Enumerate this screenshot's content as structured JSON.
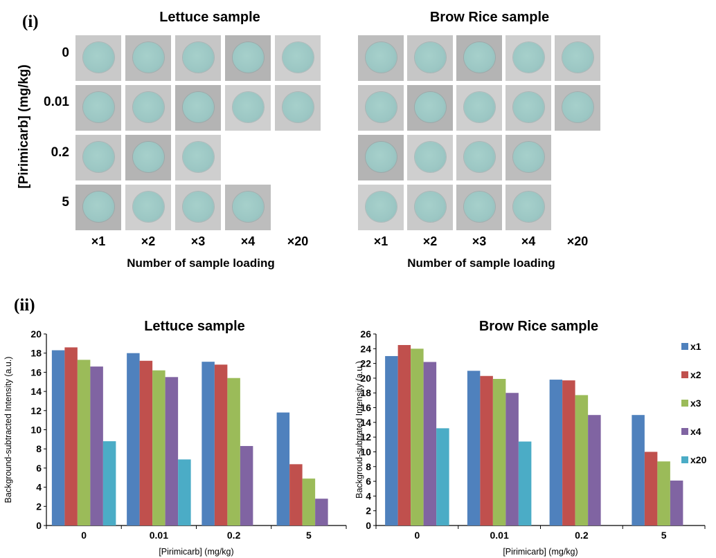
{
  "panel_i": {
    "label": "(i)",
    "y_label": "[Pirimicarb] (mg/kg)",
    "row_labels": [
      "0",
      "0.01",
      "0.2",
      "5"
    ],
    "column_labels": [
      "×1",
      "×2",
      "×3",
      "×4",
      "×20"
    ],
    "blocks": [
      {
        "title": "Lettuce sample",
        "x_label": "Number of sample loading",
        "tiles_per_row": [
          5,
          5,
          3,
          4
        ]
      },
      {
        "title": "Brow Rice sample",
        "x_label": "Number of sample loading",
        "tiles_per_row": [
          5,
          5,
          4,
          4
        ]
      }
    ]
  },
  "panel_ii": {
    "label": "(ii)"
  },
  "legend": [
    {
      "name": "x1",
      "color": "#4f81bd"
    },
    {
      "name": "x2",
      "color": "#c0504d"
    },
    {
      "name": "x3",
      "color": "#9bbb59"
    },
    {
      "name": "x4",
      "color": "#8064a2"
    },
    {
      "name": "x20",
      "color": "#4bacc6"
    }
  ],
  "chart_data": [
    {
      "type": "bar",
      "title": "Lettuce sample",
      "xlabel": "[Pirimicarb] (mg/kg)",
      "ylabel": "Background-subtracted Intensity (a.u.)",
      "ylim": [
        0,
        20
      ],
      "y_ticks": [
        0,
        2,
        4,
        6,
        8,
        10,
        12,
        14,
        16,
        18,
        20
      ],
      "categories": [
        "0",
        "0.01",
        "0.2",
        "5"
      ],
      "grid": false,
      "series": [
        {
          "name": "x1",
          "values": [
            18.3,
            18.0,
            17.1,
            11.8
          ]
        },
        {
          "name": "x2",
          "values": [
            18.6,
            17.2,
            16.8,
            6.4
          ]
        },
        {
          "name": "x3",
          "values": [
            17.3,
            16.2,
            15.4,
            4.9
          ]
        },
        {
          "name": "x4",
          "values": [
            16.6,
            15.5,
            8.3,
            2.8
          ]
        },
        {
          "name": "x20",
          "values": [
            8.8,
            6.9,
            null,
            null
          ]
        }
      ]
    },
    {
      "type": "bar",
      "title": "Brow Rice sample",
      "xlabel": "[Pirimicarb] (mg/kg)",
      "ylabel": "Backgroud-subtrated Intensity (a.u.)",
      "ylim": [
        0,
        26
      ],
      "y_ticks": [
        0,
        2,
        4,
        6,
        8,
        10,
        12,
        14,
        16,
        18,
        20,
        22,
        24,
        26
      ],
      "categories": [
        "0",
        "0.01",
        "0.2",
        "5"
      ],
      "grid": false,
      "legend_position": "right",
      "series": [
        {
          "name": "x1",
          "values": [
            23.0,
            21.0,
            19.8,
            15.0
          ]
        },
        {
          "name": "x2",
          "values": [
            24.5,
            20.3,
            19.7,
            10.0
          ]
        },
        {
          "name": "x3",
          "values": [
            24.0,
            19.9,
            17.7,
            8.7
          ]
        },
        {
          "name": "x4",
          "values": [
            22.2,
            18.0,
            15.0,
            6.1
          ]
        },
        {
          "name": "x20",
          "values": [
            13.2,
            11.4,
            null,
            null
          ]
        }
      ]
    }
  ]
}
